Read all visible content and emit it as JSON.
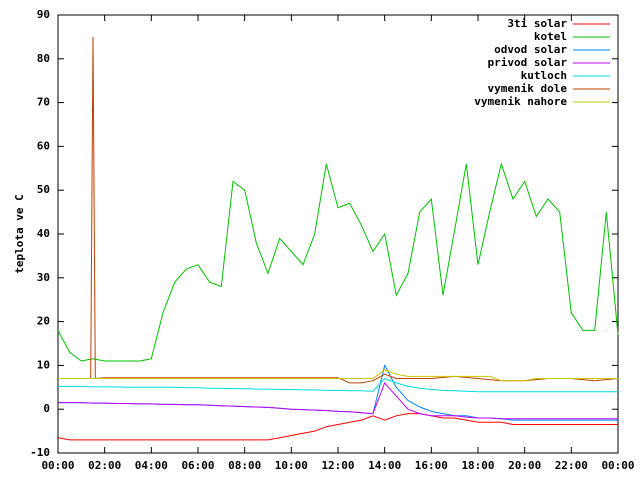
{
  "chart_data": {
    "type": "line",
    "ylabel": "teplota ve C",
    "x": [
      0,
      0.5,
      1,
      1.5,
      2,
      2.5,
      3,
      3.5,
      4,
      4.5,
      5,
      5.5,
      6,
      6.5,
      7,
      7.5,
      8,
      8.5,
      9,
      9.5,
      10,
      10.5,
      11,
      11.5,
      12,
      12.5,
      13,
      13.5,
      14,
      14.5,
      15,
      15.5,
      16,
      16.5,
      17,
      17.5,
      18,
      18.5,
      19,
      19.5,
      20,
      20.5,
      21,
      21.5,
      22,
      22.5,
      23,
      23.5,
      24
    ],
    "xlim": [
      0,
      24
    ],
    "xticks": [
      {
        "value": 0,
        "label": "00:00"
      },
      {
        "value": 2,
        "label": "02:00"
      },
      {
        "value": 4,
        "label": "04:00"
      },
      {
        "value": 6,
        "label": "06:00"
      },
      {
        "value": 8,
        "label": "08:00"
      },
      {
        "value": 10,
        "label": "10:00"
      },
      {
        "value": 12,
        "label": "12:00"
      },
      {
        "value": 14,
        "label": "14:00"
      },
      {
        "value": 16,
        "label": "16:00"
      },
      {
        "value": 18,
        "label": "18:00"
      },
      {
        "value": 20,
        "label": "20:00"
      },
      {
        "value": 22,
        "label": "22:00"
      },
      {
        "value": 24,
        "label": "00:00"
      }
    ],
    "ylim": [
      -10,
      90
    ],
    "yticks": [
      -10,
      0,
      10,
      20,
      30,
      40,
      50,
      60,
      70,
      80,
      90
    ],
    "legend": "top-right",
    "series": [
      {
        "name": "3ti solar",
        "color": "#ff0000",
        "values": [
          -6.5,
          -7,
          -7,
          -7,
          -7,
          -7,
          -7,
          -7,
          -7,
          -7,
          -7,
          -7,
          -7,
          -7,
          -7,
          -7,
          -7,
          -7,
          -7,
          -6.5,
          -6,
          -5.5,
          -5,
          -4,
          -3.5,
          -3,
          -2.5,
          -1.5,
          -2.5,
          -1.5,
          -1,
          -1,
          -1.5,
          -2,
          -2,
          -2.5,
          -3,
          -3,
          -3,
          -3.5,
          -3.5,
          -3.5,
          -3.5,
          -3.5,
          -3.5,
          -3.5,
          -3.5,
          -3.5,
          -3.5
        ]
      },
      {
        "name": "kotel",
        "color": "#00c000",
        "values": [
          18,
          13,
          11,
          11.5,
          11,
          11,
          11,
          11,
          11.5,
          22,
          29,
          32,
          33,
          29,
          28,
          52,
          50,
          38,
          31,
          39,
          36,
          33,
          40,
          56,
          46,
          47,
          42,
          36,
          40,
          26,
          31,
          45,
          48,
          26,
          41,
          56,
          33,
          45,
          56,
          48,
          52,
          44,
          48,
          45,
          22,
          18,
          18,
          45,
          17
        ]
      },
      {
        "name": "odvod solar",
        "color": "#0080ff",
        "values": [
          1.5,
          1.5,
          1.5,
          1.4,
          1.4,
          1.3,
          1.3,
          1.2,
          1.2,
          1.1,
          1.1,
          1,
          1,
          0.9,
          0.8,
          0.7,
          0.6,
          0.5,
          0.4,
          0.2,
          0,
          -0.1,
          -0.2,
          -0.3,
          -0.5,
          -0.6,
          -0.8,
          -1,
          10,
          5,
          2,
          0.5,
          -0.5,
          -1,
          -1.5,
          -1.5,
          -2,
          -2,
          -2.2,
          -2.5,
          -2.5,
          -2.5,
          -2.5,
          -2.5,
          -2.5,
          -2.5,
          -2.5,
          -2.5,
          -2.5
        ]
      },
      {
        "name": "privod solar",
        "color": "#c000ff",
        "values": [
          1.5,
          1.5,
          1.5,
          1.4,
          1.4,
          1.3,
          1.3,
          1.2,
          1.2,
          1.1,
          1.1,
          1,
          1,
          0.9,
          0.8,
          0.7,
          0.6,
          0.5,
          0.4,
          0.2,
          0,
          -0.1,
          -0.2,
          -0.3,
          -0.5,
          -0.6,
          -0.8,
          -1,
          6,
          3,
          0,
          -1,
          -1.5,
          -1.5,
          -1.5,
          -1.8,
          -2,
          -2,
          -2.2,
          -2.2,
          -2.2,
          -2.2,
          -2.2,
          -2.2,
          -2.2,
          -2.2,
          -2.2,
          -2.2,
          -2.2
        ]
      },
      {
        "name": "kutloch",
        "color": "#00dddd",
        "values": [
          5.2,
          5.2,
          5.2,
          5.1,
          5.1,
          5.1,
          5,
          5,
          5,
          5,
          5,
          4.9,
          4.9,
          4.8,
          4.8,
          4.7,
          4.7,
          4.6,
          4.6,
          4.5,
          4.5,
          4.4,
          4.4,
          4.3,
          4.3,
          4.2,
          4.2,
          4.1,
          7,
          6,
          5.2,
          4.8,
          4.5,
          4.3,
          4.2,
          4.1,
          4,
          4,
          4,
          4,
          4,
          4,
          4,
          4,
          4,
          4,
          4,
          4,
          4
        ]
      },
      {
        "name": "vymenik dole",
        "color": "#c04000",
        "x": [
          0,
          0.5,
          1,
          1.4,
          1.5,
          1.6,
          2,
          3,
          4,
          5,
          6,
          7,
          8,
          9,
          10,
          11,
          12,
          12.5,
          13,
          13.5,
          14,
          14.5,
          15,
          16,
          17,
          18,
          19,
          20,
          21,
          22,
          23,
          24
        ],
        "values": [
          7,
          7,
          7,
          7,
          85,
          7,
          7.2,
          7.2,
          7.2,
          7.2,
          7.2,
          7.2,
          7.2,
          7.2,
          7.2,
          7.2,
          7.2,
          6,
          6,
          6.5,
          8,
          7,
          7,
          7,
          7.5,
          7,
          6.5,
          6.5,
          7,
          7,
          6.5,
          7
        ]
      },
      {
        "name": "vymenik nahore",
        "color": "#c8c800",
        "values": [
          7,
          7,
          7,
          7,
          7,
          7,
          7,
          7,
          7,
          7,
          7,
          7,
          7,
          7,
          7,
          7,
          7,
          7,
          7,
          7,
          7,
          7,
          7,
          7,
          7,
          7,
          7,
          7,
          9,
          8,
          7.5,
          7.5,
          7.5,
          7.5,
          7.5,
          7.5,
          7.5,
          7.5,
          6.5,
          6.5,
          6.5,
          7,
          7,
          7,
          7,
          7,
          7,
          7,
          7
        ]
      }
    ]
  }
}
